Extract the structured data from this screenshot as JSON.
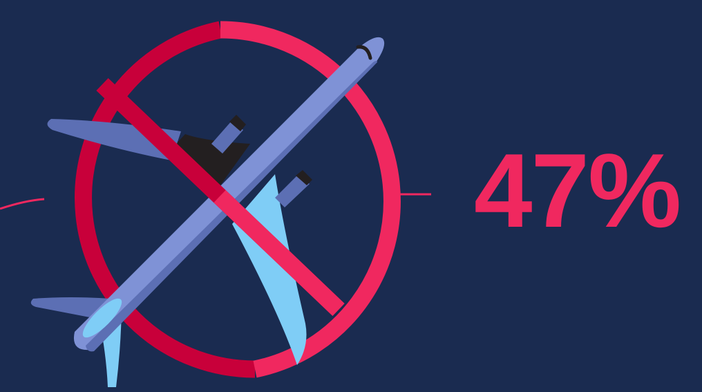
{
  "stat": {
    "value": "47%",
    "percent": 47
  },
  "icon": {
    "name": "no-flight-icon",
    "depicts": [
      "airplane-icon",
      "prohibition-sign-icon"
    ]
  },
  "colors": {
    "background": "#1a2b50",
    "accent": "#f0285f",
    "accent_dark": "#c8003a",
    "plane_body": "#7f92d6",
    "plane_body_shadow": "#5c6fb4",
    "plane_wing_light": "#7fcdf6",
    "plane_wing_dark": "#231f20"
  }
}
